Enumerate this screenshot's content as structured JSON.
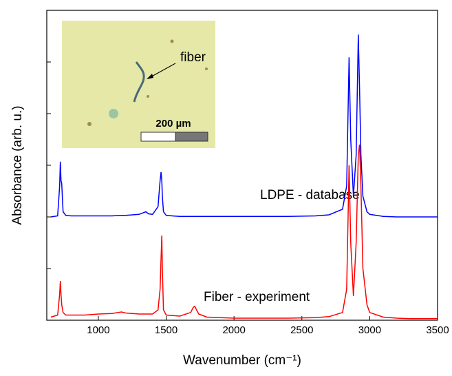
{
  "chart_data": {
    "type": "line",
    "xlabel": "Wavenumber (cm⁻¹)",
    "ylabel": "Absorbance (arb. u.)",
    "annotations": [
      "LDPE - database",
      "Fiber - experiment"
    ],
    "inset": {
      "label": "fiber",
      "scale_bar": "200 µm"
    },
    "xlim": [
      620,
      3500
    ],
    "xticks": [
      1000,
      1500,
      2000,
      2500,
      3000,
      3500
    ],
    "ylim": [
      0,
      6
    ],
    "yticks": [
      0,
      1,
      2,
      3,
      4,
      5,
      6
    ],
    "x": [
      650,
      700,
      715,
      720,
      725,
      730,
      740,
      760,
      800,
      900,
      1000,
      1100,
      1170,
      1200,
      1300,
      1350,
      1370,
      1400,
      1440,
      1455,
      1462,
      1468,
      1472,
      1480,
      1500,
      1600,
      1680,
      1700,
      1710,
      1720,
      1740,
      1800,
      2000,
      2200,
      2400,
      2600,
      2700,
      2800,
      2830,
      2848,
      2860,
      2880,
      2900,
      2916,
      2925,
      2935,
      2950,
      2980,
      3000,
      3100,
      3200,
      3300,
      3500
    ],
    "series": [
      {
        "color": "#0000ff",
        "values": [
          2.0,
          2.02,
          2.6,
          3.07,
          2.7,
          2.65,
          2.1,
          2.03,
          2.02,
          2.02,
          2.02,
          2.02,
          2.03,
          2.03,
          2.05,
          2.1,
          2.06,
          2.05,
          2.2,
          2.7,
          2.87,
          2.7,
          2.4,
          2.1,
          2.03,
          2.01,
          2.01,
          2.01,
          2.01,
          2.01,
          2.01,
          2.01,
          2.01,
          2.01,
          2.01,
          2.02,
          2.04,
          2.15,
          2.6,
          5.09,
          3.5,
          2.4,
          3.2,
          5.53,
          4.5,
          3.2,
          2.4,
          2.1,
          2.05,
          2.01,
          2.0,
          2.0,
          2.0
        ]
      },
      {
        "color": "#ff0000",
        "values": [
          0.06,
          0.1,
          0.5,
          0.76,
          0.5,
          0.3,
          0.15,
          0.1,
          0.1,
          0.1,
          0.12,
          0.13,
          0.16,
          0.14,
          0.12,
          0.12,
          0.12,
          0.12,
          0.2,
          0.6,
          1.2,
          1.64,
          1.0,
          0.2,
          0.1,
          0.08,
          0.15,
          0.25,
          0.27,
          0.22,
          0.12,
          0.06,
          0.04,
          0.04,
          0.04,
          0.05,
          0.07,
          0.15,
          0.6,
          3.0,
          1.5,
          0.47,
          1.5,
          3.2,
          3.4,
          2.6,
          1.0,
          0.3,
          0.15,
          0.06,
          0.04,
          0.03,
          0.03
        ]
      }
    ]
  }
}
